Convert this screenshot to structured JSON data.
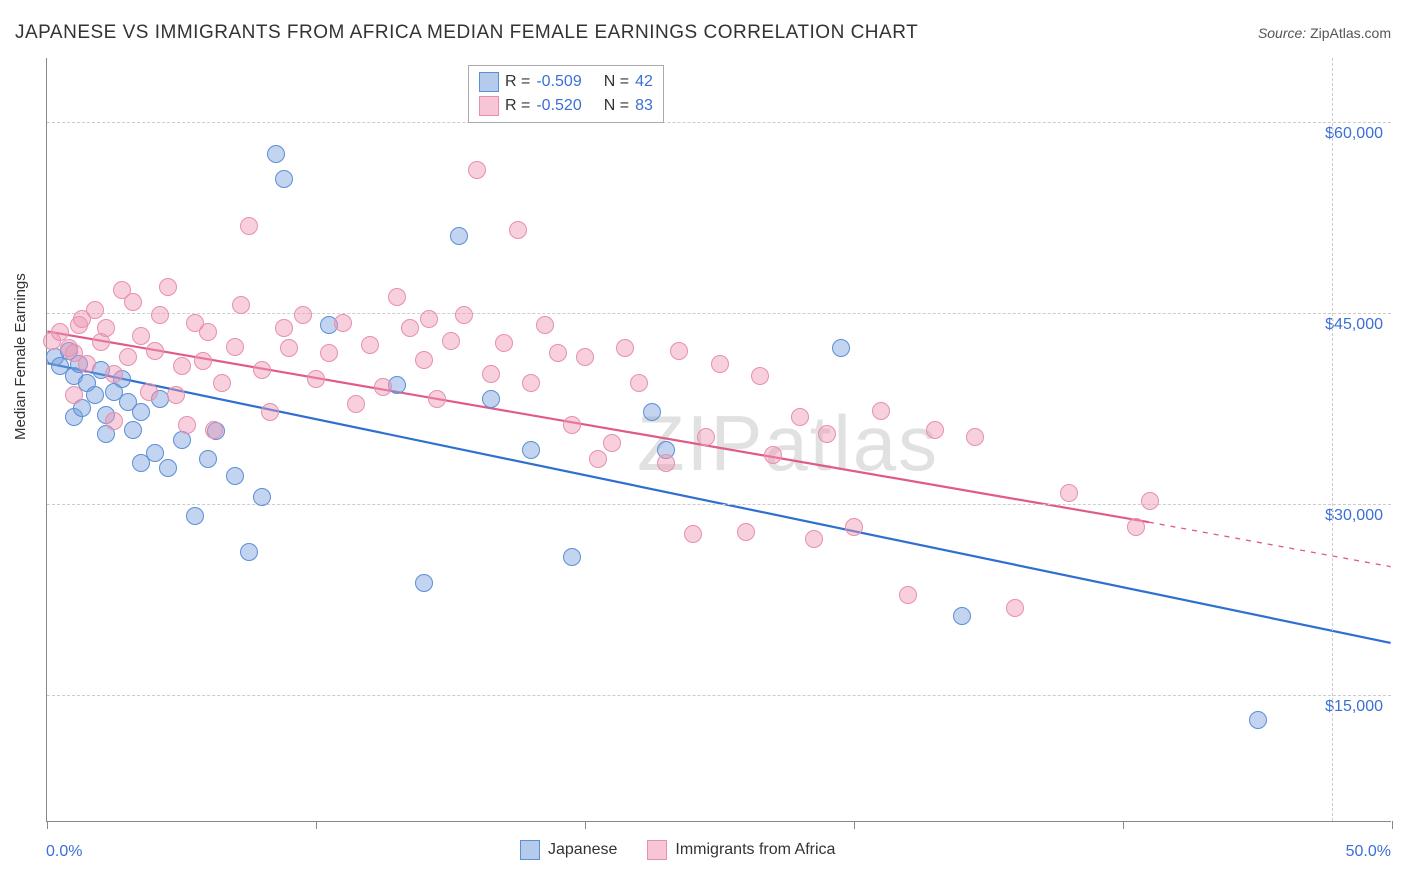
{
  "title": "JAPANESE VS IMMIGRANTS FROM AFRICA MEDIAN FEMALE EARNINGS CORRELATION CHART",
  "source_label": "Source:",
  "source_value": "ZipAtlas.com",
  "y_axis_title": "Median Female Earnings",
  "watermark": "ZIPatlas",
  "chart": {
    "type": "scatter",
    "xlim": [
      0,
      50
    ],
    "ylim": [
      5000,
      65000
    ],
    "x_ticks": [
      0,
      10,
      20,
      30,
      40,
      50
    ],
    "y_gridlines": [
      15000,
      30000,
      45000,
      60000
    ],
    "y_tick_labels": [
      "$15,000",
      "$30,000",
      "$45,000",
      "$60,000"
    ],
    "x_label_min": "0.0%",
    "x_label_max": "50.0%",
    "grid_color": "#cccccc",
    "axis_color": "#888888",
    "label_color": "#3b6fd6",
    "background_color": "#ffffff",
    "point_radius": 9,
    "point_stroke_width": 1.5,
    "series": [
      {
        "name": "Japanese",
        "fill": "rgba(120,160,220,0.45)",
        "stroke": "#5b8fd6",
        "R": "-0.509",
        "N": "42",
        "trend": {
          "x1": 0,
          "y1": 41000,
          "x2": 50,
          "y2": 19000,
          "color": "#2f6fd0",
          "width": 2.2
        },
        "points": [
          [
            0.3,
            41500
          ],
          [
            0.5,
            40800
          ],
          [
            0.8,
            42000
          ],
          [
            1.0,
            40000
          ],
          [
            1.2,
            41000
          ],
          [
            1.5,
            39500
          ],
          [
            1.0,
            36800
          ],
          [
            1.3,
            37500
          ],
          [
            1.8,
            38500
          ],
          [
            2.0,
            40500
          ],
          [
            2.2,
            37000
          ],
          [
            2.5,
            38800
          ],
          [
            2.2,
            35500
          ],
          [
            2.8,
            39800
          ],
          [
            3.0,
            38000
          ],
          [
            3.2,
            35800
          ],
          [
            3.5,
            37200
          ],
          [
            3.5,
            33200
          ],
          [
            4.2,
            38200
          ],
          [
            4.0,
            34000
          ],
          [
            4.5,
            32800
          ],
          [
            5.0,
            35000
          ],
          [
            5.5,
            29000
          ],
          [
            6.0,
            33500
          ],
          [
            6.3,
            35700
          ],
          [
            7.0,
            32200
          ],
          [
            7.5,
            26200
          ],
          [
            8.0,
            30500
          ],
          [
            8.5,
            57500
          ],
          [
            8.8,
            55500
          ],
          [
            10.5,
            44000
          ],
          [
            13.0,
            39300
          ],
          [
            14.0,
            23800
          ],
          [
            15.3,
            51000
          ],
          [
            16.5,
            38200
          ],
          [
            18.0,
            34200
          ],
          [
            19.5,
            25800
          ],
          [
            22.5,
            37200
          ],
          [
            23.0,
            34200
          ],
          [
            29.5,
            42200
          ],
          [
            34.0,
            21200
          ],
          [
            45.0,
            13000
          ]
        ]
      },
      {
        "name": "Immigrants from Africa",
        "fill": "rgba(240,150,180,0.45)",
        "stroke": "#e78fb0",
        "R": "-0.520",
        "N": "83",
        "trend": {
          "x1": 0,
          "y1": 43500,
          "x2": 41,
          "y2": 28500,
          "dash_x2": 50,
          "dash_y2": 25000,
          "color": "#e05a8a",
          "width": 2.2
        },
        "points": [
          [
            0.2,
            42800
          ],
          [
            0.5,
            43500
          ],
          [
            0.8,
            42200
          ],
          [
            1.0,
            41800
          ],
          [
            1.2,
            44000
          ],
          [
            1.5,
            41000
          ],
          [
            1.0,
            38500
          ],
          [
            1.3,
            44500
          ],
          [
            1.8,
            45200
          ],
          [
            2.0,
            42700
          ],
          [
            2.2,
            43800
          ],
          [
            2.5,
            40200
          ],
          [
            2.8,
            46800
          ],
          [
            2.5,
            36500
          ],
          [
            3.0,
            41500
          ],
          [
            3.2,
            45800
          ],
          [
            3.5,
            43200
          ],
          [
            3.8,
            38800
          ],
          [
            4.0,
            42000
          ],
          [
            4.2,
            44800
          ],
          [
            4.5,
            47000
          ],
          [
            4.8,
            38500
          ],
          [
            5.0,
            40800
          ],
          [
            5.2,
            36200
          ],
          [
            5.5,
            44200
          ],
          [
            5.8,
            41200
          ],
          [
            6.0,
            43500
          ],
          [
            6.2,
            35800
          ],
          [
            6.5,
            39500
          ],
          [
            7.0,
            42300
          ],
          [
            7.2,
            45600
          ],
          [
            7.5,
            51800
          ],
          [
            8.0,
            40500
          ],
          [
            8.3,
            37200
          ],
          [
            8.8,
            43800
          ],
          [
            9.0,
            42200
          ],
          [
            9.5,
            44800
          ],
          [
            10.0,
            39800
          ],
          [
            10.5,
            41800
          ],
          [
            11.0,
            44200
          ],
          [
            11.5,
            37800
          ],
          [
            12.0,
            42500
          ],
          [
            12.5,
            39200
          ],
          [
            13.0,
            46200
          ],
          [
            13.5,
            43800
          ],
          [
            14.0,
            41300
          ],
          [
            14.2,
            44500
          ],
          [
            14.5,
            38200
          ],
          [
            15.0,
            42800
          ],
          [
            15.5,
            44800
          ],
          [
            16.0,
            56200
          ],
          [
            16.5,
            40200
          ],
          [
            17.0,
            42600
          ],
          [
            17.5,
            51500
          ],
          [
            18.0,
            39500
          ],
          [
            18.5,
            44000
          ],
          [
            19.0,
            41800
          ],
          [
            19.5,
            36200
          ],
          [
            20.0,
            41500
          ],
          [
            20.5,
            33500
          ],
          [
            21.0,
            34800
          ],
          [
            21.5,
            42200
          ],
          [
            22.0,
            39500
          ],
          [
            23.0,
            33200
          ],
          [
            23.5,
            42000
          ],
          [
            24.0,
            27600
          ],
          [
            24.5,
            35200
          ],
          [
            25.0,
            41000
          ],
          [
            26.0,
            27800
          ],
          [
            26.5,
            40000
          ],
          [
            27.0,
            33800
          ],
          [
            28.0,
            36800
          ],
          [
            28.5,
            27200
          ],
          [
            29.0,
            35500
          ],
          [
            30.0,
            28200
          ],
          [
            31.0,
            37300
          ],
          [
            32.0,
            22800
          ],
          [
            33.0,
            35800
          ],
          [
            34.5,
            35200
          ],
          [
            36.0,
            21800
          ],
          [
            38.0,
            30800
          ],
          [
            40.5,
            28200
          ],
          [
            41.0,
            30200
          ]
        ]
      }
    ]
  },
  "legend_top": {
    "rows": [
      {
        "swatch_fill": "rgba(120,160,220,0.55)",
        "swatch_stroke": "#5b8fd6",
        "R_label": "R =",
        "R": "-0.509",
        "N_label": "N =",
        "N": "42"
      },
      {
        "swatch_fill": "rgba(240,150,180,0.55)",
        "swatch_stroke": "#e78fb0",
        "R_label": "R =",
        "R": "-0.520",
        "N_label": "N =",
        "N": "83"
      }
    ]
  },
  "legend_bottom": {
    "items": [
      {
        "swatch_fill": "rgba(120,160,220,0.55)",
        "swatch_stroke": "#5b8fd6",
        "label": "Japanese"
      },
      {
        "swatch_fill": "rgba(240,150,180,0.55)",
        "swatch_stroke": "#e78fb0",
        "label": "Immigrants from Africa"
      }
    ]
  }
}
